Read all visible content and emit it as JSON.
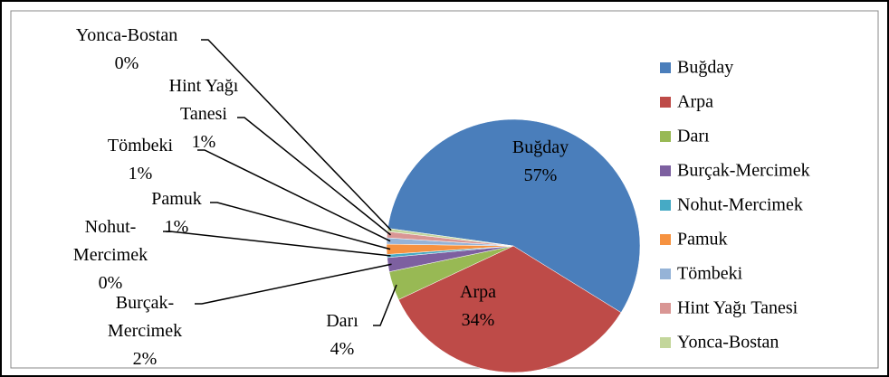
{
  "chart_data": {
    "type": "pie",
    "categories": [
      "Buğday",
      "Arpa",
      "Darı",
      "Burçak-Mercimek",
      "Nohut-Mercimek",
      "Pamuk",
      "Tömbeki",
      "Hint Yağı Tanesi",
      "Yonca-Bostan"
    ],
    "values": [
      56.6,
      34.2,
      3.7,
      1.8,
      0.4,
      1.3,
      0.8,
      0.8,
      0.4
    ],
    "value_labels": [
      "57%",
      "34%",
      "4%",
      "2%",
      "0%",
      "1%",
      "1%",
      "1%",
      "0%"
    ],
    "colors": [
      "#4a7ebb",
      "#be4b48",
      "#98b954",
      "#7d60a0",
      "#46aac5",
      "#f69240",
      "#95b3d7",
      "#d99694",
      "#c3d69b"
    ],
    "legend": "right"
  }
}
